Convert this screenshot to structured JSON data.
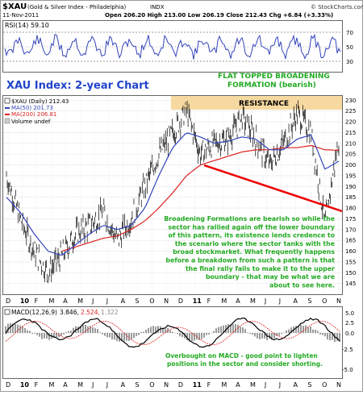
{
  "header": {
    "symbol": "$XAU",
    "name": "(Gold & Silver Index - Philadelphia)",
    "exchange": "INDX",
    "date": "11-Nov-2011",
    "ohlc": "Open 206.20  High 213.00  Low 206.19  Close 212.43  Chg +6.84 (+3.33%)",
    "watermark": "© StockCharts.com"
  },
  "rsi": {
    "label": "RSI(14) 59.10",
    "ticks": [
      "70",
      "50",
      "30"
    ],
    "color": "#3344bb"
  },
  "main": {
    "title": "XAU Index: 2-year Chart",
    "pattern_title_1": "FLAT TOPPED BROADENING",
    "pattern_title_2": "FORMATION (bearish)",
    "resistance_label": "RESISTANCE",
    "legend": [
      {
        "text": "$XAU (Daily) 212.43",
        "color": "#000000"
      },
      {
        "text": "MA(50) 201.73",
        "color": "#3344bb"
      },
      {
        "text": "MA(200) 206.81",
        "color": "#dd2222"
      },
      {
        "text": "Volume undef",
        "color": "#000000"
      }
    ],
    "commentary": [
      "Broadening Formations are bearish so while the",
      "sector has rallied again off the lower boundary",
      "of this pattern, its existence lends credence to",
      "the scenario where the sector tanks with the",
      "broad stockmarket. What frequently happens",
      "before a breakdown from such a pattern is that",
      "the final rally fails to make it to the upper",
      "boundary - that may be what we are",
      "about to see here."
    ],
    "accent_text": "#22aa22",
    "resistance_fill": "#f5d9a0",
    "trendline": "#ee0000"
  },
  "macd": {
    "label_prefix": "MACD(12,26,9)",
    "label_values": [
      "3.846,",
      "2.524,",
      "1.322"
    ],
    "ticks": [
      "5.0",
      "2.5",
      "0.0",
      "-2.5",
      "-5.0"
    ],
    "note_1": "Overbought on MACD - good point to lighten",
    "note_2": "positions in the sector and consider shorting."
  },
  "x_axis": {
    "months": [
      "D",
      "10",
      "F",
      "M",
      "A",
      "M",
      "J",
      "J",
      "A",
      "S",
      "O",
      "N",
      "D",
      "11",
      "F",
      "M",
      "A",
      "M",
      "J",
      "J",
      "A",
      "S",
      "O",
      "N"
    ]
  },
  "chart_data": {
    "type": "line",
    "title": "XAU Index: 2-year Chart",
    "ylim": [
      140,
      232
    ],
    "y_ticks": [
      145,
      150,
      155,
      160,
      165,
      170,
      175,
      180,
      185,
      190,
      195,
      200,
      205,
      210,
      215,
      220,
      225,
      230
    ],
    "x_range": [
      "2009-11",
      "2011-11"
    ],
    "series": [
      {
        "name": "$XAU (Daily)",
        "x": [
          "2009-11",
          "2009-12",
          "2010-01",
          "2010-02",
          "2010-03",
          "2010-04",
          "2010-05",
          "2010-06",
          "2010-07",
          "2010-08",
          "2010-09",
          "2010-10",
          "2010-11",
          "2010-12",
          "2011-01",
          "2011-02",
          "2011-03",
          "2011-04",
          "2011-05",
          "2011-06",
          "2011-07",
          "2011-08",
          "2011-09",
          "2011-10",
          "2011-11"
        ],
        "values": [
          195,
          175,
          160,
          150,
          158,
          168,
          172,
          178,
          165,
          175,
          190,
          205,
          215,
          225,
          205,
          210,
          212,
          222,
          212,
          200,
          210,
          224,
          215,
          172,
          212
        ]
      },
      {
        "name": "MA(50)",
        "values": [
          185,
          178,
          168,
          160,
          158,
          163,
          168,
          172,
          170,
          172,
          180,
          195,
          208,
          215,
          213,
          210,
          211,
          213,
          212,
          207,
          207,
          212,
          214,
          198,
          201.73
        ]
      },
      {
        "name": "MA(200)",
        "values": [
          null,
          null,
          null,
          null,
          160,
          162,
          164,
          166,
          167,
          170,
          174,
          180,
          187,
          195,
          200,
          202,
          204,
          206,
          207,
          207,
          208,
          208,
          209,
          207,
          206.81
        ]
      }
    ],
    "annotations": [
      "RESISTANCE",
      "FLAT TOPPED BROADENING FORMATION (bearish)"
    ]
  }
}
